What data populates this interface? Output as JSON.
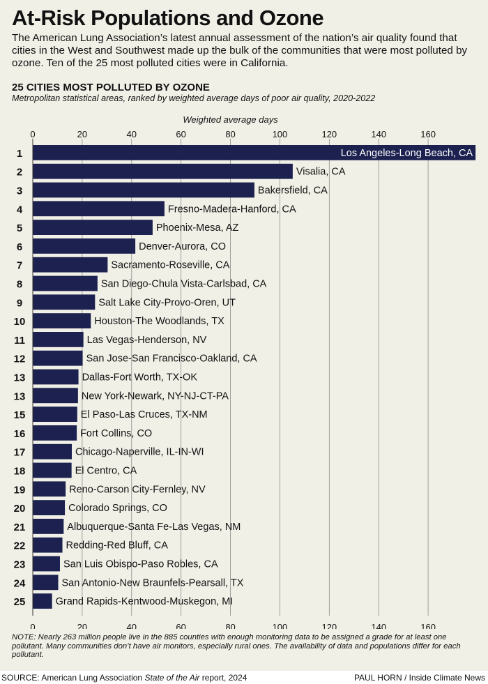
{
  "title": "At-Risk Populations and Ozone",
  "intro": "The American Lung Association’s latest annual assessment of the nation’s air quality found that cities in the West and Southwest made up the bulk of the communities that were most polluted by ozone. Ten of the 25 most polluted cities were in California.",
  "note": "NOTE: Nearly 263 million people live in the 885 counties with enough monitoring data to be assigned a grade for at least one pollutant. Many communities don’t have air monitors, especially rural ones. The availability of data and populations differ for each pollutant.",
  "source": {
    "prefix": "SOURCE: American Lung Association ",
    "report": "State of the Air",
    "suffix": " report, 2024"
  },
  "credit": "PAUL HORN / Inside Climate News",
  "colors": {
    "bar": "#1c2150",
    "background": "#f1f0e7",
    "gridline": "#8a8a8a",
    "label_inside": "#ffffff"
  },
  "chart_data": {
    "type": "bar",
    "orientation": "horizontal",
    "title": "25 CITIES MOST POLLUTED BY OZONE",
    "subtitle": "Metropolitan statistical areas, ranked by weighted average days of poor air quality, 2020-2022",
    "xlabel": "Weighted average days",
    "xlim": [
      0,
      180
    ],
    "xticks": [
      0,
      20,
      40,
      60,
      80,
      100,
      120,
      140,
      160
    ],
    "grid": true,
    "ranks": [
      "1",
      "2",
      "3",
      "4",
      "5",
      "6",
      "7",
      "8",
      "9",
      "10",
      "11",
      "12",
      "13",
      "13",
      "15",
      "16",
      "17",
      "18",
      "19",
      "20",
      "21",
      "22",
      "23",
      "24",
      "25"
    ],
    "categories": [
      "Los Angeles-Long Beach, CA",
      "Visalia, CA",
      "Bakersfield, CA",
      "Fresno-Madera-Hanford, CA",
      "Phoenix-Mesa, AZ",
      "Denver-Aurora, CO",
      "Sacramento-Roseville, CA",
      "San Diego-Chula Vista-Carlsbad, CA",
      "Salt Lake City-Provo-Oren, UT",
      "Houston-The Woodlands, TX",
      "Las Vegas-Henderson, NV",
      "San Jose-San Francisco-Oakland, CA",
      "Dallas-Fort Worth, TX-OK",
      "New York-Newark, NY-NJ-CT-PA",
      "El Paso-Las Cruces, TX-NM",
      "Fort Collins, CO",
      "Chicago-Naperville, IL-IN-WI",
      "El Centro, CA",
      "Reno-Carson City-Fernley, NV",
      "Colorado Springs, CO",
      "Albuquerque-Santa Fe-Las Vegas, NM",
      "Redding-Red Bluff, CA",
      "San Luis Obispo-Paso Robles, CA",
      "San Antonio-New Braunfels-Pearsall, TX",
      "Grand Rapids-Kentwood-Muskegon, MI"
    ],
    "values": [
      179.2,
      105.2,
      89.7,
      53.3,
      48.5,
      41.5,
      30.3,
      26.2,
      25.2,
      23.5,
      20.5,
      20.2,
      18.5,
      18.3,
      18.0,
      17.8,
      15.8,
      15.7,
      13.3,
      13.0,
      12.5,
      12.0,
      11.0,
      10.3,
      7.8
    ]
  }
}
